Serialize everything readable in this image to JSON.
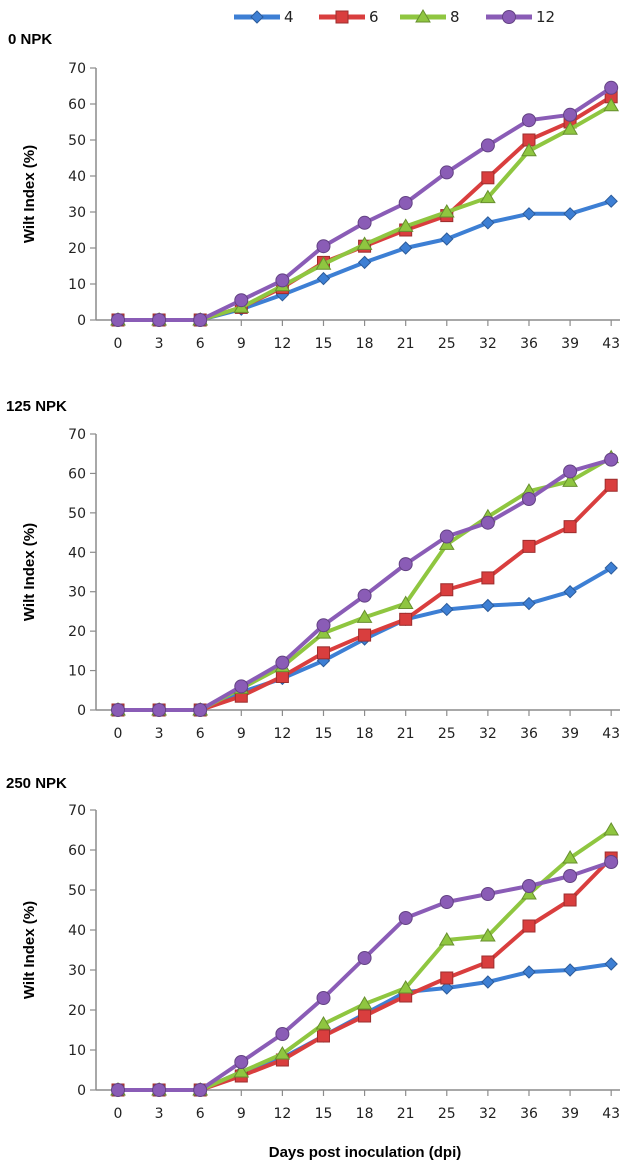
{
  "legend": [
    {
      "name": "4",
      "color": "#3d7fd4",
      "marker": "diamond"
    },
    {
      "name": "6",
      "color": "#d93e3e",
      "marker": "square"
    },
    {
      "name": "8",
      "color": "#8fc640",
      "marker": "triangle"
    },
    {
      "name": "12",
      "color": "#8a5cb6",
      "marker": "circle"
    }
  ],
  "xlabel": "Days post inoculation (dpi)",
  "chart_data": [
    {
      "type": "line",
      "title": "0 NPK",
      "ylabel": "Wilt Index (%)",
      "categories": [
        "0",
        "3",
        "6",
        "9",
        "12",
        "15",
        "18",
        "21",
        "25",
        "32",
        "36",
        "39",
        "43"
      ],
      "ylim": [
        0,
        70
      ],
      "yticks": [
        "0",
        "10",
        "20",
        "30",
        "40",
        "50",
        "60",
        "70"
      ],
      "series": [
        {
          "name": "4",
          "values": [
            0,
            0,
            0,
            3,
            7,
            11.5,
            16,
            20,
            22.5,
            27,
            29.5,
            29.5,
            33
          ]
        },
        {
          "name": "6",
          "values": [
            0,
            0,
            0,
            3.5,
            9,
            16,
            20.5,
            25,
            29,
            39.5,
            50,
            55,
            62
          ]
        },
        {
          "name": "8",
          "values": [
            0,
            0,
            0,
            3.5,
            9.5,
            15.5,
            21,
            26,
            30,
            34,
            47,
            53,
            59.5
          ]
        },
        {
          "name": "12",
          "values": [
            0,
            0,
            0,
            5.5,
            11,
            20.5,
            27,
            32.5,
            41,
            48.5,
            55.5,
            57,
            64.5
          ]
        }
      ]
    },
    {
      "type": "line",
      "title": "125 NPK",
      "ylabel": "Wilt Index (%)",
      "categories": [
        "0",
        "3",
        "6",
        "9",
        "12",
        "15",
        "18",
        "21",
        "25",
        "32",
        "36",
        "39",
        "43"
      ],
      "ylim": [
        0,
        70
      ],
      "yticks": [
        "0",
        "10",
        "20",
        "30",
        "40",
        "50",
        "60",
        "70"
      ],
      "series": [
        {
          "name": "4",
          "values": [
            0,
            0,
            0,
            4.5,
            8,
            12.5,
            18,
            23,
            25.5,
            26.5,
            27,
            30,
            36
          ]
        },
        {
          "name": "6",
          "values": [
            0,
            0,
            0,
            3.5,
            8.5,
            14.5,
            19,
            23,
            30.5,
            33.5,
            41.5,
            46.5,
            57
          ]
        },
        {
          "name": "8",
          "values": [
            0,
            0,
            0,
            5.5,
            11,
            19.5,
            23.5,
            27,
            42,
            49,
            55.5,
            58,
            64
          ]
        },
        {
          "name": "12",
          "values": [
            0,
            0,
            0,
            6,
            12,
            21.5,
            29,
            37,
            44,
            47.5,
            53.5,
            60.5,
            63.5
          ]
        }
      ]
    },
    {
      "type": "line",
      "title": "250 NPK",
      "ylabel": "Wilt Index (%)",
      "categories": [
        "0",
        "3",
        "6",
        "9",
        "12",
        "15",
        "18",
        "21",
        "25",
        "32",
        "36",
        "39",
        "43"
      ],
      "ylim": [
        0,
        70
      ],
      "yticks": [
        "0",
        "10",
        "20",
        "30",
        "40",
        "50",
        "60",
        "70"
      ],
      "series": [
        {
          "name": "4",
          "values": [
            0,
            0,
            0,
            4.5,
            8,
            13.5,
            19,
            24.5,
            25.5,
            27,
            29.5,
            30,
            31.5
          ]
        },
        {
          "name": "6",
          "values": [
            0,
            0,
            0,
            3.5,
            7.5,
            13.5,
            18.5,
            23.5,
            28,
            32,
            41,
            47.5,
            58
          ]
        },
        {
          "name": "8",
          "values": [
            0,
            0,
            0,
            4.5,
            9,
            16.5,
            21.5,
            25.5,
            37.5,
            38.5,
            49,
            58,
            65
          ]
        },
        {
          "name": "12",
          "values": [
            0,
            0,
            0,
            7,
            14,
            23,
            33,
            43,
            47,
            49,
            51,
            53.5,
            57
          ]
        }
      ]
    }
  ]
}
